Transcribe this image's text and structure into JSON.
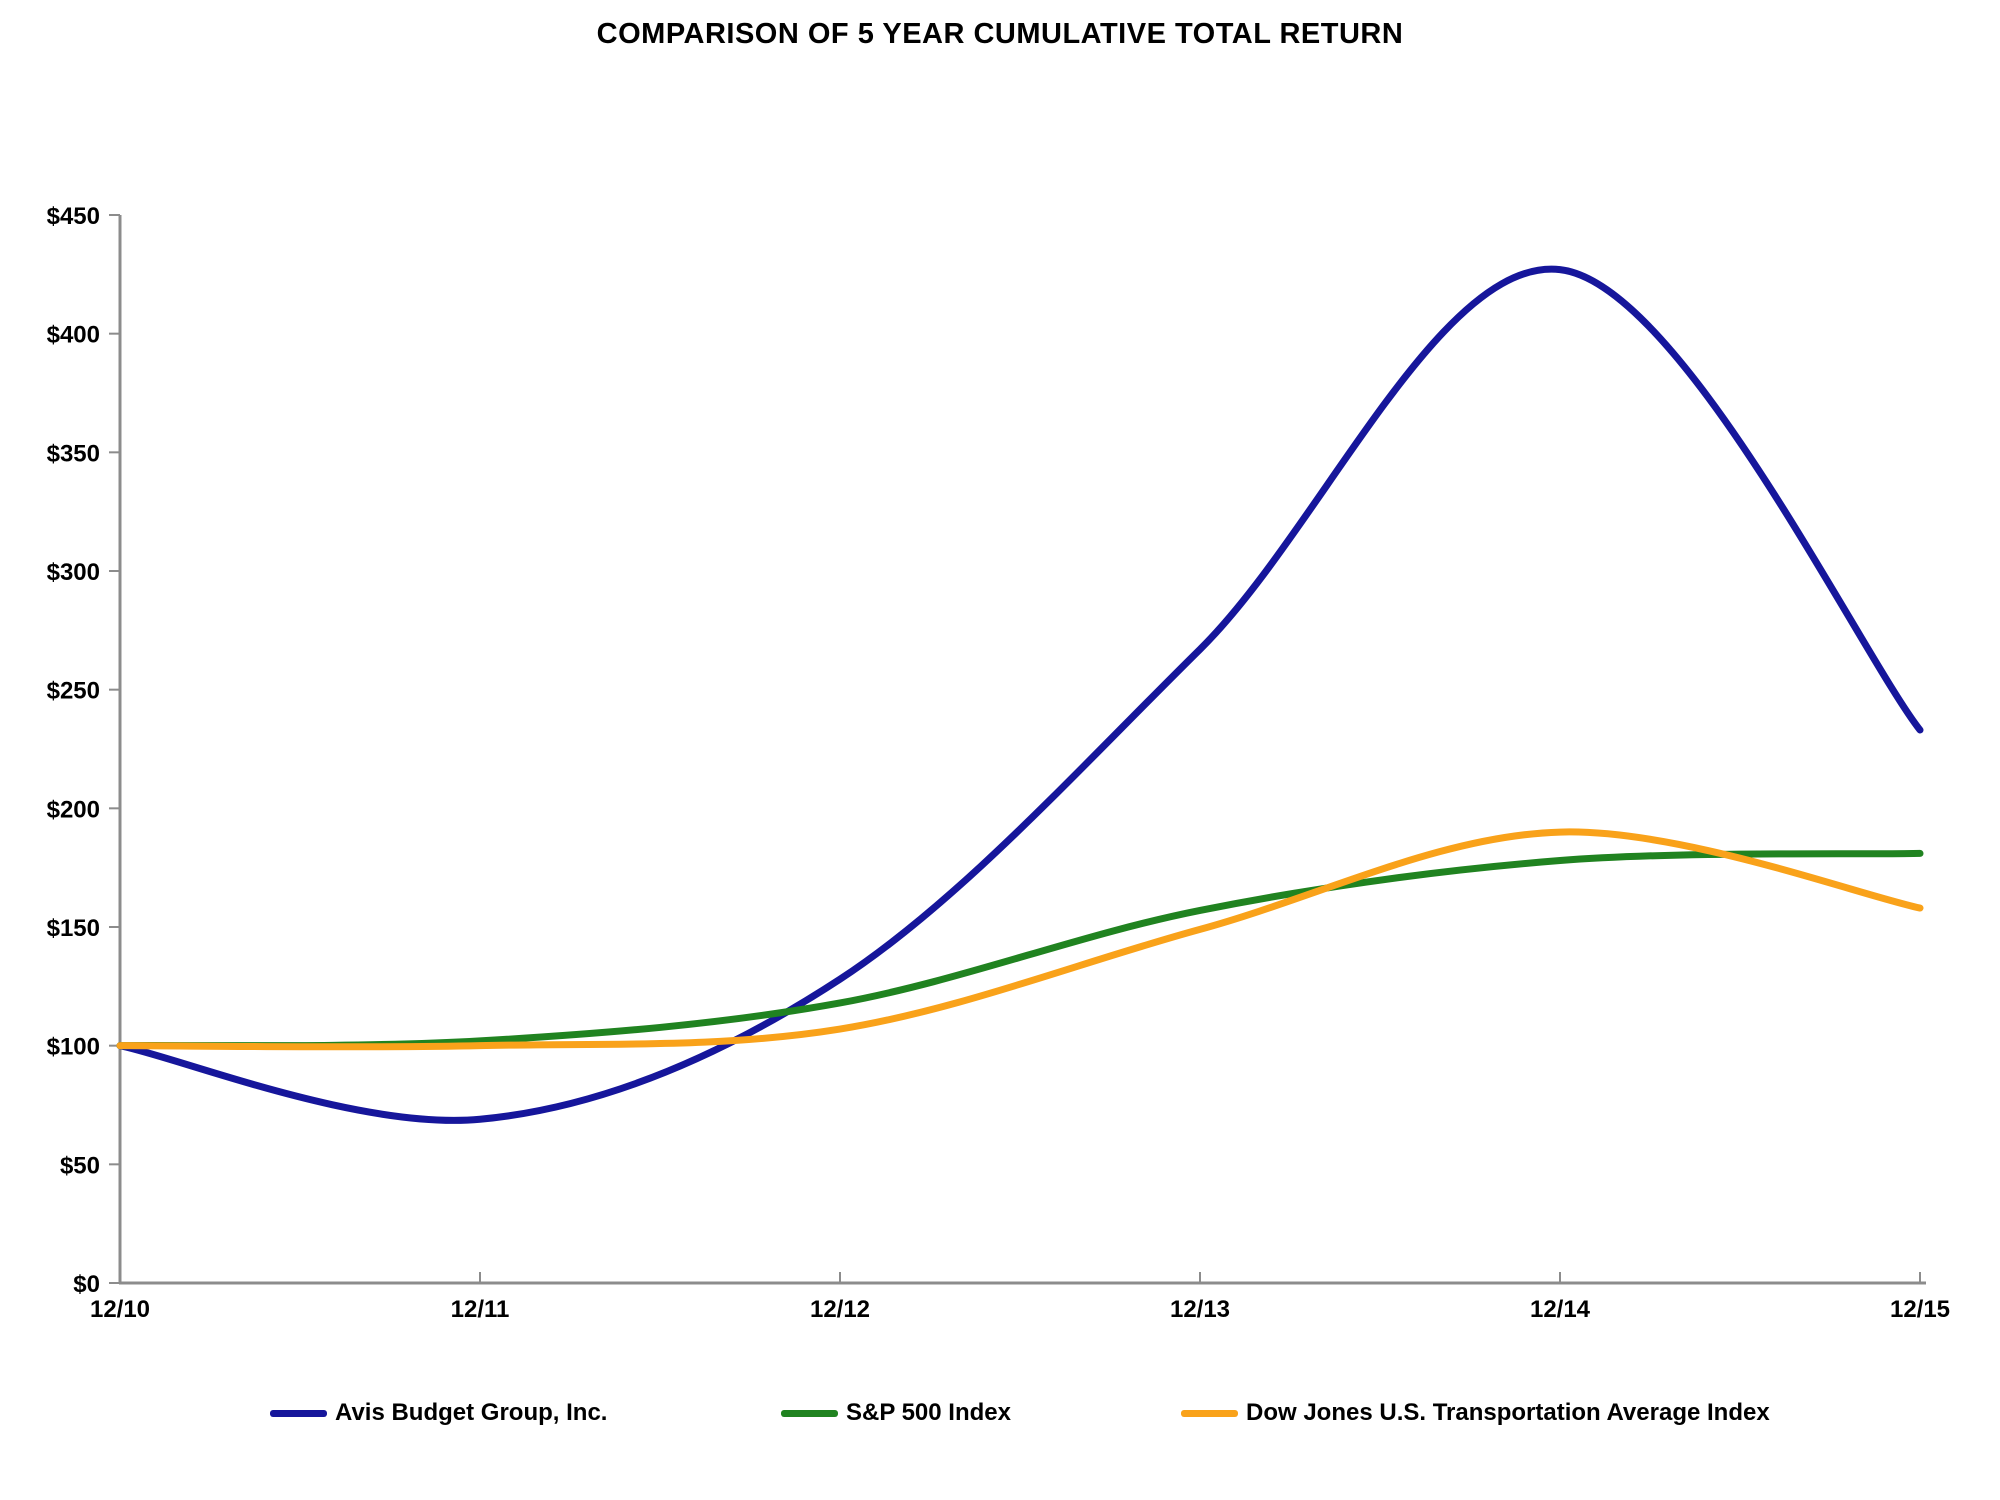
{
  "title": "COMPARISON OF 5 YEAR CUMULATIVE TOTAL RETURN",
  "chart_data": {
    "type": "line",
    "smooth": true,
    "grid": false,
    "legend_position": "bottom",
    "categories": [
      "12/10",
      "12/11",
      "12/12",
      "12/13",
      "12/14",
      "12/15"
    ],
    "series": [
      {
        "name": "Avis Budget Group, Inc.",
        "color": "#16169B",
        "values": [
          100,
          69,
          128,
          267,
          427,
          233
        ]
      },
      {
        "name": "S&P 500 Index",
        "color": "#208320",
        "values": [
          100,
          102,
          118,
          157,
          178,
          181
        ]
      },
      {
        "name": "Dow Jones U.S. Transportation Average Index",
        "color": "#F9A21A",
        "values": [
          100,
          100,
          107,
          149,
          190,
          158
        ]
      }
    ],
    "xlabel": "",
    "ylabel": "",
    "ylim": [
      0,
      450
    ],
    "ytick_step": 50,
    "ytick_labels": [
      "$0",
      "$50",
      "$100",
      "$150",
      "$200",
      "$250",
      "$300",
      "$350",
      "$400",
      "$450"
    ],
    "axis_color": "#8C8C8C"
  }
}
